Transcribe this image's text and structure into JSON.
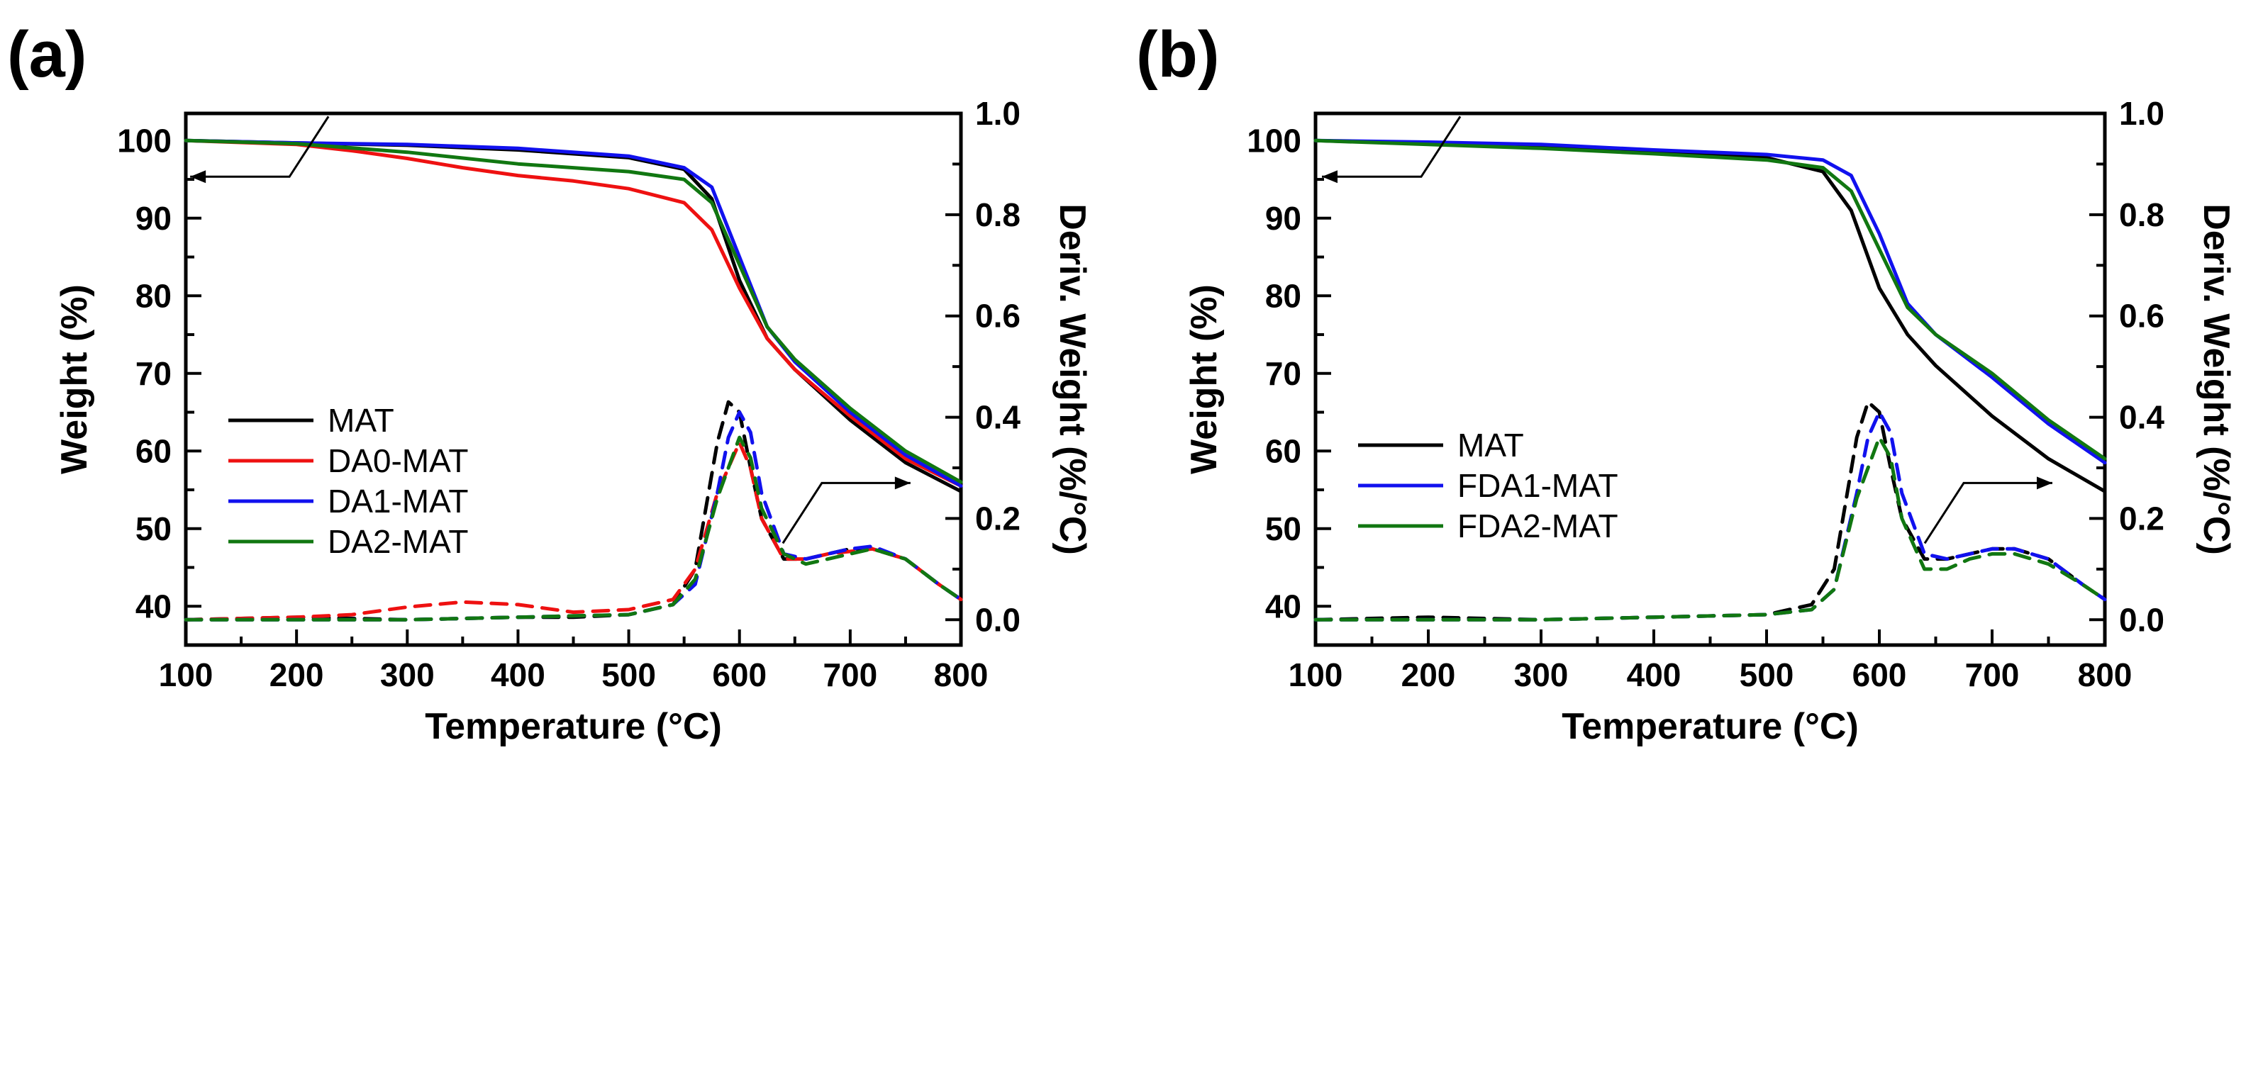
{
  "chart_data": [
    {
      "type": "line",
      "panel_label": "(a)",
      "xlabel": "Temperature (°C)",
      "ylabel": "Weight (%)",
      "y2label": "Deriv. Weight (%/°C)",
      "xlim": [
        100,
        800
      ],
      "ylim": [
        35,
        103.5
      ],
      "y2lim": [
        -0.05,
        1.0
      ],
      "xticks": [
        "100",
        "200",
        "300",
        "400",
        "500",
        "600",
        "700",
        "800"
      ],
      "yticks": [
        "40",
        "50",
        "60",
        "70",
        "80",
        "90",
        "100"
      ],
      "y2ticks": [
        "0.0",
        "0.2",
        "0.4",
        "0.6",
        "0.8",
        "1.0"
      ],
      "legend_position": "lower-left",
      "annotations": [
        {
          "text": "",
          "arrow": "left",
          "points_to": "Weight (%) axis",
          "near_x": 200,
          "near_y": 99
        },
        {
          "text": "",
          "arrow": "right",
          "points_to": "Deriv. Weight axis",
          "near_x": 700,
          "near_y2": 0.13
        }
      ],
      "series": [
        {
          "name": "MAT",
          "color": "#000000",
          "axis": "left",
          "dash": false,
          "x": [
            100,
            200,
            300,
            400,
            500,
            550,
            575,
            600,
            625,
            650,
            700,
            750,
            800
          ],
          "y": [
            100,
            99.7,
            99.4,
            98.8,
            97.8,
            96.3,
            92.5,
            82,
            74.5,
            70.5,
            64,
            58.5,
            54.8
          ]
        },
        {
          "name": "DA0-MAT",
          "color": "#ee1111",
          "axis": "left",
          "dash": false,
          "x": [
            100,
            200,
            250,
            300,
            350,
            400,
            450,
            500,
            550,
            575,
            600,
            625,
            650,
            700,
            750,
            800
          ],
          "y": [
            100,
            99.5,
            98.7,
            97.7,
            96.5,
            95.5,
            94.8,
            93.8,
            92,
            88.5,
            81,
            74.5,
            70.5,
            64.5,
            59,
            55.5
          ]
        },
        {
          "name": "DA1-MAT",
          "color": "#1111ee",
          "axis": "left",
          "dash": false,
          "x": [
            100,
            200,
            300,
            400,
            500,
            550,
            575,
            600,
            625,
            650,
            700,
            750,
            800
          ],
          "y": [
            100,
            99.7,
            99.5,
            99,
            98,
            96.5,
            94,
            85,
            76,
            71.5,
            65,
            59.5,
            55.5
          ]
        },
        {
          "name": "DA2-MAT",
          "color": "#117711",
          "axis": "left",
          "dash": false,
          "x": [
            100,
            200,
            300,
            400,
            500,
            550,
            575,
            600,
            625,
            650,
            700,
            750,
            800
          ],
          "y": [
            100,
            99.6,
            98.5,
            97,
            96,
            95,
            92,
            84,
            76,
            71.8,
            65.5,
            60,
            56
          ]
        },
        {
          "name": "MAT",
          "color": "#000000",
          "axis": "right",
          "dash": true,
          "x": [
            100,
            200,
            300,
            400,
            450,
            500,
            540,
            560,
            580,
            590,
            600,
            610,
            620,
            640,
            660,
            680,
            700,
            720,
            750,
            780,
            800
          ],
          "y": [
            0.0,
            0.005,
            0.0,
            0.005,
            0.005,
            0.01,
            0.03,
            0.1,
            0.35,
            0.43,
            0.41,
            0.3,
            0.2,
            0.12,
            0.12,
            0.13,
            0.14,
            0.14,
            0.12,
            0.07,
            0.04
          ]
        },
        {
          "name": "DA0-MAT",
          "color": "#ee1111",
          "axis": "right",
          "dash": true,
          "x": [
            100,
            200,
            250,
            300,
            350,
            400,
            450,
            500,
            540,
            560,
            580,
            600,
            610,
            620,
            640,
            660,
            680,
            700,
            720,
            750,
            780,
            800
          ],
          "y": [
            0.0,
            0.005,
            0.01,
            0.025,
            0.035,
            0.03,
            0.015,
            0.02,
            0.04,
            0.1,
            0.25,
            0.35,
            0.3,
            0.2,
            0.12,
            0.12,
            0.13,
            0.135,
            0.14,
            0.12,
            0.07,
            0.04
          ]
        },
        {
          "name": "DA1-MAT",
          "color": "#1111ee",
          "axis": "right",
          "dash": true,
          "x": [
            100,
            200,
            300,
            400,
            500,
            540,
            560,
            580,
            590,
            600,
            610,
            620,
            640,
            660,
            680,
            700,
            720,
            750,
            780,
            800
          ],
          "y": [
            0.0,
            0.0,
            0.0,
            0.005,
            0.01,
            0.03,
            0.07,
            0.25,
            0.36,
            0.41,
            0.37,
            0.25,
            0.13,
            0.12,
            0.13,
            0.14,
            0.145,
            0.12,
            0.07,
            0.04
          ]
        },
        {
          "name": "DA2-MAT",
          "color": "#117711",
          "axis": "right",
          "dash": true,
          "x": [
            100,
            200,
            300,
            400,
            500,
            540,
            560,
            580,
            600,
            610,
            620,
            640,
            660,
            680,
            700,
            720,
            750,
            780,
            800
          ],
          "y": [
            0.0,
            0.0,
            0.0,
            0.005,
            0.01,
            0.03,
            0.08,
            0.24,
            0.36,
            0.32,
            0.22,
            0.13,
            0.11,
            0.12,
            0.13,
            0.14,
            0.12,
            0.07,
            0.04
          ]
        }
      ]
    },
    {
      "type": "line",
      "panel_label": "(b)",
      "xlabel": "Temperature (°C)",
      "ylabel": "Weight (%)",
      "y2label": "Deriv. Weight (%/°C)",
      "xlim": [
        100,
        800
      ],
      "ylim": [
        35,
        103.5
      ],
      "y2lim": [
        -0.05,
        1.0
      ],
      "xticks": [
        "100",
        "200",
        "300",
        "400",
        "500",
        "600",
        "700",
        "800"
      ],
      "yticks": [
        "40",
        "50",
        "60",
        "70",
        "80",
        "90",
        "100"
      ],
      "y2ticks": [
        "0.0",
        "0.2",
        "0.4",
        "0.6",
        "0.8",
        "1.0"
      ],
      "legend_position": "lower-left",
      "annotations": [
        {
          "text": "",
          "arrow": "left",
          "points_to": "Weight (%) axis",
          "near_x": 200,
          "near_y": 99
        },
        {
          "text": "",
          "arrow": "right",
          "points_to": "Deriv. Weight axis",
          "near_x": 700,
          "near_y2": 0.13
        }
      ],
      "series": [
        {
          "name": "MAT",
          "color": "#000000",
          "axis": "left",
          "dash": false,
          "x": [
            100,
            200,
            300,
            400,
            500,
            550,
            575,
            600,
            625,
            650,
            700,
            750,
            800
          ],
          "y": [
            100,
            99.6,
            99.2,
            98.6,
            97.8,
            96,
            91,
            81,
            75,
            71,
            64.5,
            59,
            54.8
          ]
        },
        {
          "name": "FDA1-MAT",
          "color": "#1111ee",
          "axis": "left",
          "dash": false,
          "x": [
            100,
            200,
            300,
            400,
            500,
            550,
            575,
            600,
            625,
            650,
            700,
            750,
            800
          ],
          "y": [
            100,
            99.8,
            99.5,
            98.8,
            98.2,
            97.5,
            95.5,
            88,
            79,
            75,
            69.5,
            63.5,
            58.5
          ]
        },
        {
          "name": "FDA2-MAT",
          "color": "#117711",
          "axis": "left",
          "dash": false,
          "x": [
            100,
            200,
            300,
            400,
            500,
            550,
            575,
            600,
            625,
            650,
            700,
            750,
            800
          ],
          "y": [
            100,
            99.5,
            99,
            98.3,
            97.5,
            96.5,
            93.5,
            86,
            78.5,
            75,
            70,
            64,
            59
          ]
        },
        {
          "name": "MAT",
          "color": "#000000",
          "axis": "right",
          "dash": true,
          "x": [
            100,
            200,
            300,
            400,
            500,
            540,
            560,
            580,
            590,
            600,
            610,
            620,
            640,
            660,
            680,
            700,
            720,
            750,
            780,
            800
          ],
          "y": [
            0.0,
            0.005,
            0.0,
            0.005,
            0.01,
            0.03,
            0.1,
            0.36,
            0.43,
            0.41,
            0.3,
            0.2,
            0.12,
            0.12,
            0.13,
            0.14,
            0.14,
            0.12,
            0.07,
            0.04
          ]
        },
        {
          "name": "FDA1-MAT",
          "color": "#1111ee",
          "axis": "right",
          "dash": true,
          "x": [
            100,
            200,
            300,
            400,
            500,
            540,
            560,
            580,
            590,
            600,
            610,
            620,
            640,
            660,
            680,
            700,
            720,
            750,
            780,
            800
          ],
          "y": [
            0.0,
            0.0,
            0.0,
            0.005,
            0.01,
            0.02,
            0.06,
            0.25,
            0.36,
            0.41,
            0.37,
            0.25,
            0.13,
            0.12,
            0.13,
            0.14,
            0.14,
            0.12,
            0.07,
            0.04
          ]
        },
        {
          "name": "FDA2-MAT",
          "color": "#117711",
          "axis": "right",
          "dash": true,
          "x": [
            100,
            200,
            300,
            400,
            500,
            540,
            560,
            580,
            600,
            610,
            620,
            640,
            660,
            680,
            700,
            720,
            750,
            780,
            800
          ],
          "y": [
            0.0,
            0.0,
            0.0,
            0.005,
            0.01,
            0.02,
            0.06,
            0.24,
            0.36,
            0.32,
            0.2,
            0.1,
            0.1,
            0.12,
            0.13,
            0.13,
            0.11,
            0.07,
            0.04
          ]
        }
      ]
    }
  ]
}
